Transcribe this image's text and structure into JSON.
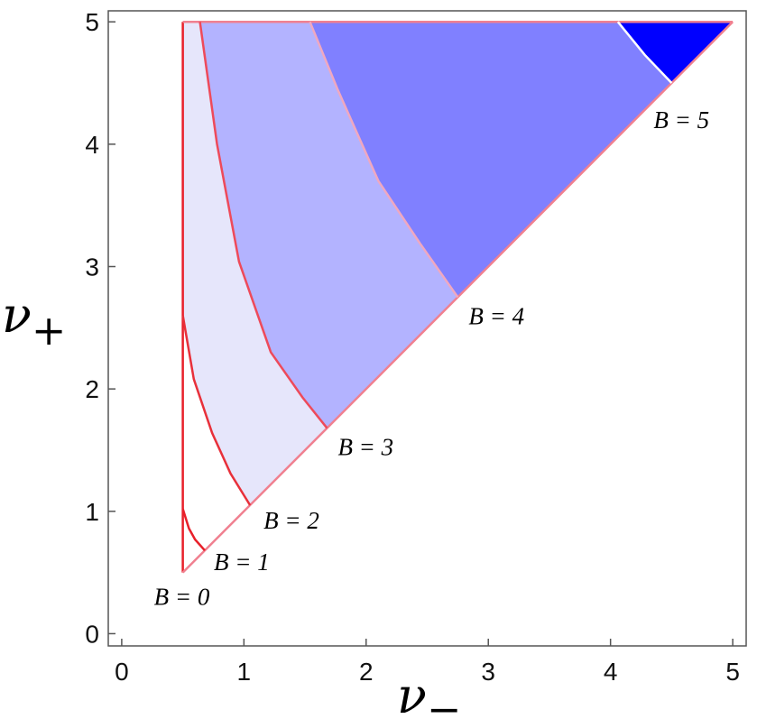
{
  "chart_data": {
    "type": "region",
    "x_label": "ν",
    "x_label_sub": "−",
    "y_label": "ν",
    "y_label_sub": "+",
    "xlim": [
      -0.11,
      5.11
    ],
    "ylim": [
      -0.1,
      5.09
    ],
    "xticks": [
      0,
      1,
      2,
      3,
      4,
      5
    ],
    "yticks": [
      0,
      1,
      2,
      3,
      4,
      5
    ],
    "series": [
      {
        "name": "B = 0",
        "color": "#ffffff",
        "line_color": "#e8202a",
        "x": [
          0.5
        ],
        "values": [
          0.5
        ]
      },
      {
        "name": "B = 1",
        "color": "#ffffff",
        "line_color": "#e8202a",
        "x": [
          0.5,
          0.55,
          0.6,
          0.68
        ],
        "values": [
          1.02,
          0.86,
          0.77,
          0.68
        ]
      },
      {
        "name": "B = 2",
        "color": "#e6e6fb",
        "line_color": "#e8303a",
        "x": [
          0.5,
          0.59,
          0.74,
          0.89,
          1.05
        ],
        "values": [
          2.6,
          2.08,
          1.64,
          1.31,
          1.05
        ]
      },
      {
        "name": "B = 3",
        "color": "#b3b3ff",
        "line_color": "#ee4a5a",
        "x": [
          0.64,
          0.78,
          0.96,
          1.22,
          1.48,
          1.68
        ],
        "values": [
          5,
          4.0,
          3.04,
          2.3,
          1.93,
          1.68
        ]
      },
      {
        "name": "B = 4",
        "color": "#8080ff",
        "line_color": "#f0a8c0",
        "x": [
          1.54,
          1.77,
          2.1,
          2.44,
          2.75
        ],
        "values": [
          5,
          4.44,
          3.7,
          3.19,
          2.75
        ]
      },
      {
        "name": "B = 5",
        "color": "#4a4aff",
        "line_color": "#ffffff",
        "x": [
          4.06,
          4.28,
          4.5
        ],
        "values": [
          5,
          4.73,
          4.5
        ]
      }
    ],
    "top_color": "#0000ff"
  }
}
